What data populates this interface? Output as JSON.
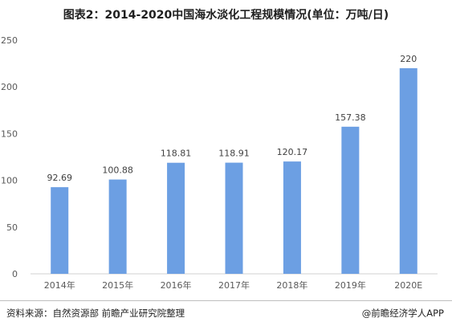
{
  "title": "图表2：2014-2020中国海水淡化工程规模情况(单位：万吨/日)",
  "source": "资料来源：自然资源部 前瞻产业研究院整理",
  "brand": "@前瞻经济学人APP",
  "chart_data": {
    "type": "bar",
    "categories": [
      "2014年",
      "2015年",
      "2016年",
      "2017年",
      "2018年",
      "2019年",
      "2020E"
    ],
    "values": [
      92.69,
      100.88,
      118.81,
      118.91,
      120.17,
      157.38,
      220
    ],
    "value_labels": [
      "92.69",
      "100.88",
      "118.81",
      "118.91",
      "120.17",
      "157.38",
      "220"
    ],
    "ylim": [
      0,
      250
    ],
    "yticks": [
      0,
      50,
      100,
      150,
      200,
      250
    ],
    "grid": false,
    "bar_color": "#6c9fe3"
  }
}
